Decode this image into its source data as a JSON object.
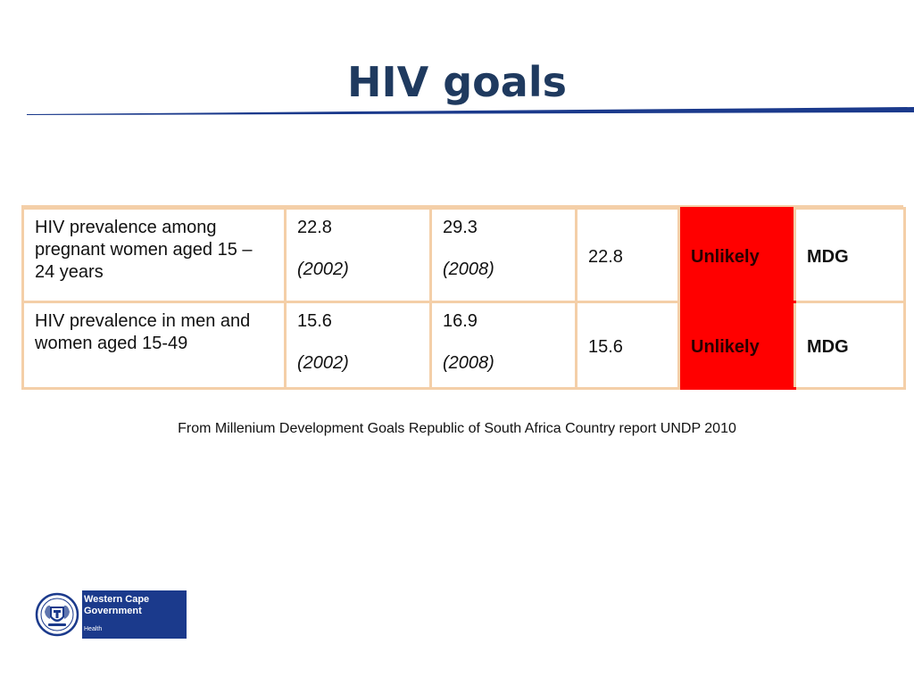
{
  "slide": {
    "title": "HIV goals",
    "source_note": "From Millenium Development Goals Republic of South Africa Country report UNDP 2010"
  },
  "table": {
    "rows": [
      {
        "indicator": "HIV prevalence among pregnant women aged 15 – 24 years",
        "baseline_value": "22.8",
        "baseline_year": "(2002)",
        "current_value": "29.3",
        "current_year": "(2008)",
        "target": "22.8",
        "status": "Unlikely",
        "type": "MDG"
      },
      {
        "indicator": "HIV prevalence in men and women aged 15-49",
        "baseline_value": "15.6",
        "baseline_year": "(2002)",
        "current_value": "16.9",
        "current_year": "(2008)",
        "target": "15.6",
        "status": "Unlikely",
        "type": "MDG"
      }
    ]
  },
  "logo": {
    "org_line1": "Western Cape",
    "org_line2": "Government",
    "department": "Health",
    "icon": "coat-of-arms-icon"
  },
  "colors": {
    "title": "#1f3a5f",
    "rule": "#1b3a8c",
    "table_border": "#f4cfa8",
    "status_fill": "#ff0000",
    "logo_fill": "#1b3a8c"
  }
}
